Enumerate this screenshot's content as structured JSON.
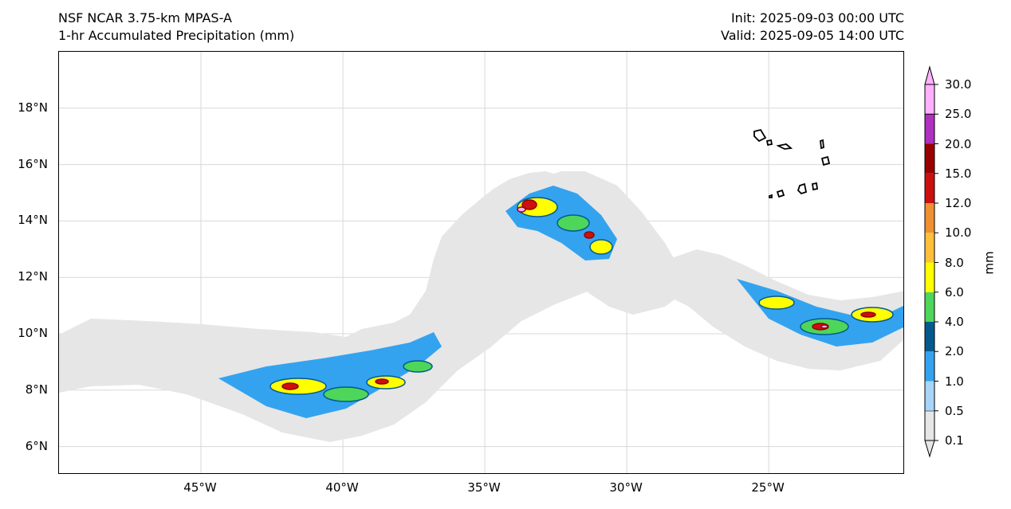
{
  "header": {
    "title_line1": "NSF NCAR 3.75-km MPAS-A",
    "title_line2": "1-hr Accumulated Precipitation (mm)",
    "init": "Init: 2025-09-03 00:00 UTC",
    "valid": "Valid: 2025-09-05 14:00 UTC"
  },
  "axes": {
    "lon_range": [
      -50,
      -20.2
    ],
    "lat_range": [
      5,
      20
    ],
    "lat_ticks": [
      {
        "v": 6,
        "label": "6°N"
      },
      {
        "v": 8,
        "label": "8°N"
      },
      {
        "v": 10,
        "label": "10°N"
      },
      {
        "v": 12,
        "label": "12°N"
      },
      {
        "v": 14,
        "label": "14°N"
      },
      {
        "v": 16,
        "label": "16°N"
      },
      {
        "v": 18,
        "label": "18°N"
      }
    ],
    "lon_ticks": [
      {
        "v": -45,
        "label": "45°W"
      },
      {
        "v": -40,
        "label": "40°W"
      },
      {
        "v": -35,
        "label": "35°W"
      },
      {
        "v": -30,
        "label": "30°W"
      },
      {
        "v": -25,
        "label": "25°W"
      }
    ],
    "grid": true
  },
  "colorbar": {
    "unit": "mm",
    "levels": [
      "0.1",
      "0.5",
      "1.0",
      "2.0",
      "4.0",
      "6.0",
      "8.0",
      "10.0",
      "12.0",
      "15.0",
      "20.0",
      "25.0",
      "30.0"
    ],
    "colors": [
      "#e6e6e6",
      "#a8d4f7",
      "#33a3f0",
      "#045a8d",
      "#4dd65a",
      "#ffff00",
      "#ffbf3b",
      "#f09030",
      "#cc1010",
      "#990000",
      "#b030c0",
      "#ffb0ff"
    ]
  }
}
